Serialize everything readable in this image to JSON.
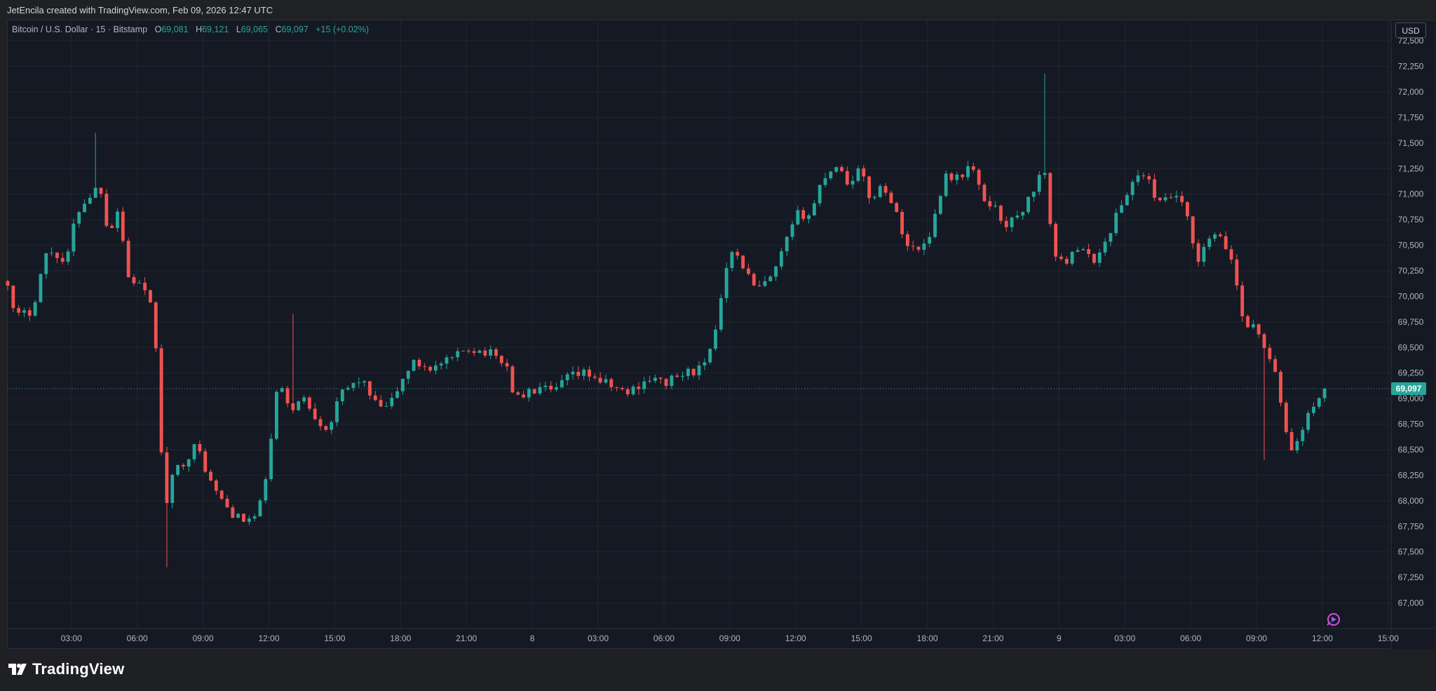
{
  "attribution": "JetEncila created with TradingView.com, Feb 09, 2026 12:47 UTC",
  "symbol": {
    "title": "Bitcoin / U.S. Dollar · 15 · Bitstamp",
    "open_label": "O",
    "open": "69,081",
    "high_label": "H",
    "high": "69,121",
    "low_label": "L",
    "low": "69,065",
    "close_label": "C",
    "close": "69,097",
    "change": "+15 (+0.02%)"
  },
  "currency_button": "USD",
  "last_price_label": "69,097",
  "brand": "TradingView",
  "colors": {
    "up": "#26a69a",
    "down": "#ef5350",
    "background": "#151924",
    "grid": "#222631",
    "axis_text": "#b2b5be",
    "last_price_line": "#26a69a"
  },
  "icons": {
    "logo": "tradingview-logo-icon",
    "replay": "replay-icon"
  },
  "chart_data": {
    "type": "candlestick",
    "interval": "15",
    "exchange": "Bitstamp",
    "ylim": [
      66750,
      72700
    ],
    "y_ticks": [
      67000,
      67250,
      67500,
      67750,
      68000,
      68250,
      68500,
      68750,
      69000,
      69250,
      69500,
      69750,
      70000,
      70250,
      70500,
      70750,
      71000,
      71250,
      71500,
      71750,
      72000,
      72250,
      72500
    ],
    "y_tick_labels": [
      "67,000",
      "67,250",
      "67,500",
      "67,750",
      "68,000",
      "68,250",
      "68,500",
      "68,750",
      "69,000",
      "69,250",
      "69,500",
      "69,750",
      "70,000",
      "70,250",
      "70,500",
      "70,750",
      "71,000",
      "71,250",
      "71,500",
      "71,750",
      "72,000",
      "72,250",
      "72,500"
    ],
    "x_ticks": [
      "03:00",
      "06:00",
      "09:00",
      "12:00",
      "15:00",
      "18:00",
      "21:00",
      "8",
      "03:00",
      "06:00",
      "09:00",
      "12:00",
      "15:00",
      "18:00",
      "21:00",
      "9",
      "03:00",
      "06:00",
      "09:00",
      "12:00",
      "15:00"
    ],
    "x_tick_hours": [
      3,
      6,
      9,
      12,
      15,
      18,
      21,
      24,
      27,
      30,
      33,
      36,
      39,
      42,
      45,
      48,
      51,
      54,
      57,
      60,
      63
    ],
    "x_start_hour": 0.1,
    "x_end_hour": 63.1,
    "bar_minutes": 15,
    "last_price": 69097,
    "anchors": [
      [
        0.1,
        70150
      ],
      [
        0.4,
        69800
      ],
      [
        1.2,
        69850
      ],
      [
        1.8,
        70400
      ],
      [
        2.2,
        70450
      ],
      [
        2.75,
        70300
      ],
      [
        3.2,
        70800
      ],
      [
        3.5,
        70900
      ],
      [
        4.3,
        71100
      ],
      [
        4.7,
        70600
      ],
      [
        5.2,
        70900
      ],
      [
        5.5,
        70200
      ],
      [
        6.2,
        70100
      ],
      [
        6.8,
        69800
      ],
      [
        7.0,
        68700
      ],
      [
        7.3,
        67950
      ],
      [
        7.7,
        68300
      ],
      [
        8.2,
        68400
      ],
      [
        8.7,
        68550
      ],
      [
        9.4,
        68150
      ],
      [
        10.2,
        67900
      ],
      [
        10.8,
        67800
      ],
      [
        11.5,
        67850
      ],
      [
        12.0,
        68400
      ],
      [
        12.4,
        69150
      ],
      [
        13.0,
        68900
      ],
      [
        13.6,
        69000
      ],
      [
        14.2,
        68800
      ],
      [
        14.7,
        68700
      ],
      [
        15.3,
        69050
      ],
      [
        16.2,
        69200
      ],
      [
        16.8,
        68950
      ],
      [
        17.4,
        68900
      ],
      [
        17.9,
        69100
      ],
      [
        18.5,
        69350
      ],
      [
        19.5,
        69300
      ],
      [
        20.5,
        69400
      ],
      [
        21.0,
        69500
      ],
      [
        22.0,
        69450
      ],
      [
        22.8,
        69350
      ],
      [
        23.2,
        69000
      ],
      [
        23.8,
        69050
      ],
      [
        24.4,
        69100
      ],
      [
        25.0,
        69050
      ],
      [
        25.5,
        69200
      ],
      [
        26.5,
        69250
      ],
      [
        27.3,
        69150
      ],
      [
        28.3,
        69050
      ],
      [
        29.3,
        69200
      ],
      [
        30.0,
        69150
      ],
      [
        31.0,
        69250
      ],
      [
        31.8,
        69300
      ],
      [
        32.2,
        69500
      ],
      [
        32.6,
        70000
      ],
      [
        33.0,
        70500
      ],
      [
        33.6,
        70300
      ],
      [
        34.2,
        70050
      ],
      [
        35.0,
        70200
      ],
      [
        35.5,
        70500
      ],
      [
        36.1,
        70800
      ],
      [
        36.7,
        70800
      ],
      [
        37.2,
        71150
      ],
      [
        37.9,
        71300
      ],
      [
        38.4,
        71100
      ],
      [
        38.9,
        71250
      ],
      [
        39.4,
        70950
      ],
      [
        40.0,
        71100
      ],
      [
        40.5,
        70850
      ],
      [
        41.1,
        70500
      ],
      [
        41.6,
        70450
      ],
      [
        42.2,
        70650
      ],
      [
        42.8,
        71200
      ],
      [
        43.4,
        71150
      ],
      [
        44.0,
        71300
      ],
      [
        44.5,
        70950
      ],
      [
        45.0,
        70900
      ],
      [
        45.5,
        70700
      ],
      [
        46.0,
        70750
      ],
      [
        46.5,
        70900
      ],
      [
        47.3,
        71250
      ],
      [
        47.8,
        70400
      ],
      [
        48.2,
        70300
      ],
      [
        48.7,
        70500
      ],
      [
        49.5,
        70350
      ],
      [
        50.0,
        70450
      ],
      [
        50.5,
        70750
      ],
      [
        51.0,
        70950
      ],
      [
        51.5,
        71200
      ],
      [
        52.0,
        71150
      ],
      [
        52.6,
        70900
      ],
      [
        53.3,
        71000
      ],
      [
        53.8,
        70800
      ],
      [
        54.3,
        70300
      ],
      [
        54.9,
        70600
      ],
      [
        55.4,
        70550
      ],
      [
        55.9,
        70350
      ],
      [
        56.4,
        69750
      ],
      [
        56.9,
        69700
      ],
      [
        57.4,
        69500
      ],
      [
        57.8,
        69300
      ],
      [
        58.2,
        68800
      ],
      [
        58.6,
        68500
      ],
      [
        58.9,
        68600
      ],
      [
        59.2,
        68750
      ],
      [
        59.6,
        68950
      ],
      [
        60.1,
        69081
      ],
      [
        60.2,
        69097
      ]
    ]
  }
}
